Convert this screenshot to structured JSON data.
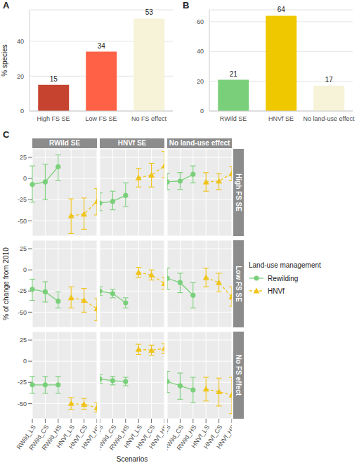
{
  "chart_data": [
    {
      "panel_label": "A",
      "type": "bar",
      "categories": [
        "High FS SE",
        "Low FS SE",
        "No FS effect"
      ],
      "values": [
        15,
        34,
        53
      ],
      "colors": [
        "#c5432f",
        "#fe6145",
        "#f6f3d9"
      ],
      "y_label": "% species",
      "ylim": [
        0,
        58
      ],
      "yticks": [
        0,
        20,
        40
      ],
      "grid": true,
      "data_labels": true
    },
    {
      "panel_label": "B",
      "type": "bar",
      "categories": [
        "RWild SE",
        "HNVf SE",
        "No land-use effect"
      ],
      "values": [
        21,
        64,
        17
      ],
      "colors": [
        "#7ad07a",
        "#f0c800",
        "#f6f3d9"
      ],
      "ylim": [
        0,
        68
      ],
      "yticks": [
        0,
        20,
        40,
        60
      ],
      "grid": true,
      "data_labels": true
    },
    {
      "panel_label": "C",
      "type": "line",
      "x_label": "Scenarios",
      "y_label": "% of change from 2010",
      "legend_title": "Land-use management",
      "legend": "right",
      "grid": true,
      "categories": [
        "RWild_LS",
        "RWild_CS",
        "RWild_HS",
        "HNVf_LS",
        "HNVf_CS",
        "HNVf_HS"
      ],
      "ylim": [
        -68,
        35
      ],
      "yticks": [
        -50,
        -25,
        0,
        25
      ],
      "columns": [
        "RWild SE",
        "HNVf SE",
        "No land-use effect"
      ],
      "rows": [
        "High FS SE",
        "Low FS SE",
        "No FS effect"
      ],
      "series": [
        {
          "name": "Rewilding",
          "color": "#7ad07a",
          "marker": "circle",
          "line_style": "solid"
        },
        {
          "name": "HNVf",
          "color": "#f0c419",
          "marker": "triangle",
          "line_style": "dashed"
        }
      ],
      "panels": [
        {
          "row": "High FS SE",
          "column": "RWild SE",
          "series": [
            {
              "name": "Rewilding",
              "values": [
                -7,
                -4,
                14,
                null,
                null,
                null
              ],
              "error_low": [
                -28,
                -25,
                -2,
                null,
                null,
                null
              ],
              "error_high": [
                15,
                17,
                28,
                null,
                null,
                null
              ]
            },
            {
              "name": "HNVf",
              "values": [
                null,
                null,
                null,
                -44,
                -42,
                -27
              ],
              "error_low": [
                null,
                null,
                null,
                -65,
                -60,
                -43
              ],
              "error_high": [
                null,
                null,
                null,
                -24,
                -23,
                -12
              ]
            }
          ]
        },
        {
          "row": "High FS SE",
          "column": "HNVf SE",
          "series": [
            {
              "name": "Rewilding",
              "values": [
                -29,
                -27,
                -20,
                null,
                null,
                null
              ],
              "error_low": [
                -38,
                -37,
                -33,
                null,
                null,
                null
              ],
              "error_high": [
                -17,
                -15,
                -5,
                null,
                null,
                null
              ]
            },
            {
              "name": "HNVf",
              "values": [
                null,
                null,
                null,
                1,
                4,
                15
              ],
              "error_low": [
                null,
                null,
                null,
                -10,
                -10,
                1
              ],
              "error_high": [
                null,
                null,
                null,
                12,
                18,
                32
              ]
            }
          ]
        },
        {
          "row": "High FS SE",
          "column": "No land-use effect",
          "series": [
            {
              "name": "Rewilding",
              "values": [
                -4,
                -3,
                5,
                null,
                null,
                null
              ],
              "error_low": [
                -13,
                -13,
                -5,
                null,
                null,
                null
              ],
              "error_high": [
                6,
                7,
                15,
                null,
                null,
                null
              ]
            },
            {
              "name": "HNVf",
              "values": [
                null,
                null,
                null,
                -4,
                -3,
                6
              ],
              "error_low": [
                null,
                null,
                null,
                -15,
                -13,
                -2
              ],
              "error_high": [
                null,
                null,
                null,
                7,
                6,
                14
              ]
            }
          ]
        },
        {
          "row": "Low FS SE",
          "column": "RWild SE",
          "series": [
            {
              "name": "Rewilding",
              "values": [
                -23,
                -26,
                -37,
                null,
                null,
                null
              ],
              "error_low": [
                -36,
                -38,
                -45,
                null,
                null,
                null
              ],
              "error_high": [
                -11,
                -14,
                -26,
                null,
                null,
                null
              ]
            },
            {
              "name": "HNVf",
              "values": [
                null,
                null,
                null,
                -33,
                -36,
                -46
              ],
              "error_low": [
                null,
                null,
                null,
                -45,
                -50,
                -60
              ],
              "error_high": [
                null,
                null,
                null,
                -20,
                -22,
                -34
              ]
            }
          ]
        },
        {
          "row": "Low FS SE",
          "column": "HNVf SE",
          "series": [
            {
              "name": "Rewilding",
              "values": [
                -25,
                -28,
                -39,
                null,
                null,
                null
              ],
              "error_low": [
                -30,
                -33,
                -45,
                null,
                null,
                null
              ],
              "error_high": [
                -20,
                -23,
                -33,
                null,
                null,
                null
              ]
            },
            {
              "name": "HNVf",
              "values": [
                null,
                null,
                null,
                -3,
                -6,
                -16
              ],
              "error_low": [
                null,
                null,
                null,
                -9,
                -12,
                -23
              ],
              "error_high": [
                null,
                null,
                null,
                3,
                0,
                -9
              ]
            }
          ]
        },
        {
          "row": "Low FS SE",
          "column": "No land-use effect",
          "series": [
            {
              "name": "Rewilding",
              "values": [
                -10,
                -15,
                -30,
                null,
                null,
                null
              ],
              "error_low": [
                -23,
                -27,
                -45,
                null,
                null,
                null
              ],
              "error_high": [
                2,
                -4,
                -15,
                null,
                null,
                null
              ]
            },
            {
              "name": "HNVf",
              "values": [
                null,
                null,
                null,
                -9,
                -15,
                -32
              ],
              "error_low": [
                null,
                null,
                null,
                -20,
                -26,
                -43
              ],
              "error_high": [
                null,
                null,
                null,
                2,
                -4,
                -20
              ]
            }
          ]
        },
        {
          "row": "No FS effect",
          "column": "RWild SE",
          "series": [
            {
              "name": "Rewilding",
              "values": [
                -28,
                -28,
                -28,
                null,
                null,
                null
              ],
              "error_low": [
                -38,
                -38,
                -38,
                null,
                null,
                null
              ],
              "error_high": [
                -18,
                -18,
                -18,
                null,
                null,
                null
              ]
            },
            {
              "name": "HNVf",
              "values": [
                null,
                null,
                null,
                -50,
                -51,
                -55
              ],
              "error_low": [
                null,
                null,
                null,
                -57,
                -57,
                -60
              ],
              "error_high": [
                null,
                null,
                null,
                -43,
                -44,
                -49
              ]
            }
          ]
        },
        {
          "row": "No FS effect",
          "column": "HNVf SE",
          "series": [
            {
              "name": "Rewilding",
              "values": [
                -21,
                -23,
                -24,
                null,
                null,
                null
              ],
              "error_low": [
                -26,
                -28,
                -29,
                null,
                null,
                null
              ],
              "error_high": [
                -16,
                -18,
                -19,
                null,
                null,
                null
              ]
            },
            {
              "name": "HNVf",
              "values": [
                null,
                null,
                null,
                14,
                13,
                15
              ],
              "error_low": [
                null,
                null,
                null,
                8,
                7,
                9
              ],
              "error_high": [
                null,
                null,
                null,
                20,
                19,
                21
              ]
            }
          ]
        },
        {
          "row": "No FS effect",
          "column": "No land-use effect",
          "series": [
            {
              "name": "Rewilding",
              "values": [
                -24,
                -29,
                -34,
                null,
                null,
                null
              ],
              "error_low": [
                -37,
                -45,
                -49,
                null,
                null,
                null
              ],
              "error_high": [
                -12,
                -14,
                -19,
                null,
                null,
                null
              ]
            },
            {
              "name": "HNVf",
              "values": [
                null,
                null,
                null,
                -33,
                -36,
                -40
              ],
              "error_low": [
                null,
                null,
                null,
                -47,
                -53,
                -62
              ],
              "error_high": [
                null,
                null,
                null,
                -19,
                -20,
                -19
              ]
            }
          ]
        }
      ]
    }
  ]
}
